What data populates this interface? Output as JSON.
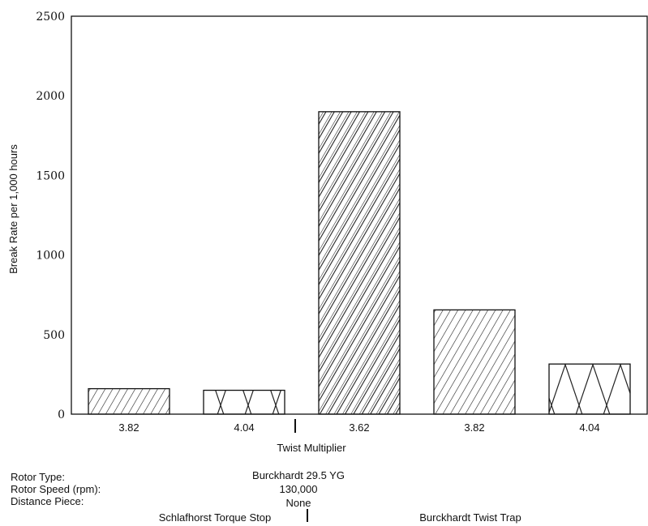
{
  "chart_data": {
    "type": "bar",
    "ylabel": "Break Rate per 1,000 hours",
    "xlabel": "Twist Multiplier",
    "ylim": [
      0,
      2500
    ],
    "yticks": [
      "0",
      "500",
      "1000",
      "1500",
      "2000",
      "2500"
    ],
    "categories": [
      "3.82",
      "4.04",
      "3.62",
      "3.82",
      "4.04"
    ],
    "values": [
      160,
      150,
      1900,
      655,
      315
    ],
    "patterns": [
      "hatch-single",
      "crosshatch",
      "hatch-double",
      "hatch-single",
      "crosshatch"
    ],
    "groups": [
      "Schlafhorst Torque Stop",
      "Burckhardt Twist Trap"
    ],
    "grid": false
  },
  "info": {
    "rotor_type_label": "Rotor Type:",
    "rotor_type_value": "Burckhardt 29.5 YG",
    "rotor_speed_label": "Rotor Speed (rpm):",
    "rotor_speed_value": "130,000",
    "distance_piece_label": "Distance Piece:",
    "distance_piece_value": "None",
    "group_1": "Schlafhorst Torque Stop",
    "group_2": "Burckhardt Twist Trap"
  }
}
